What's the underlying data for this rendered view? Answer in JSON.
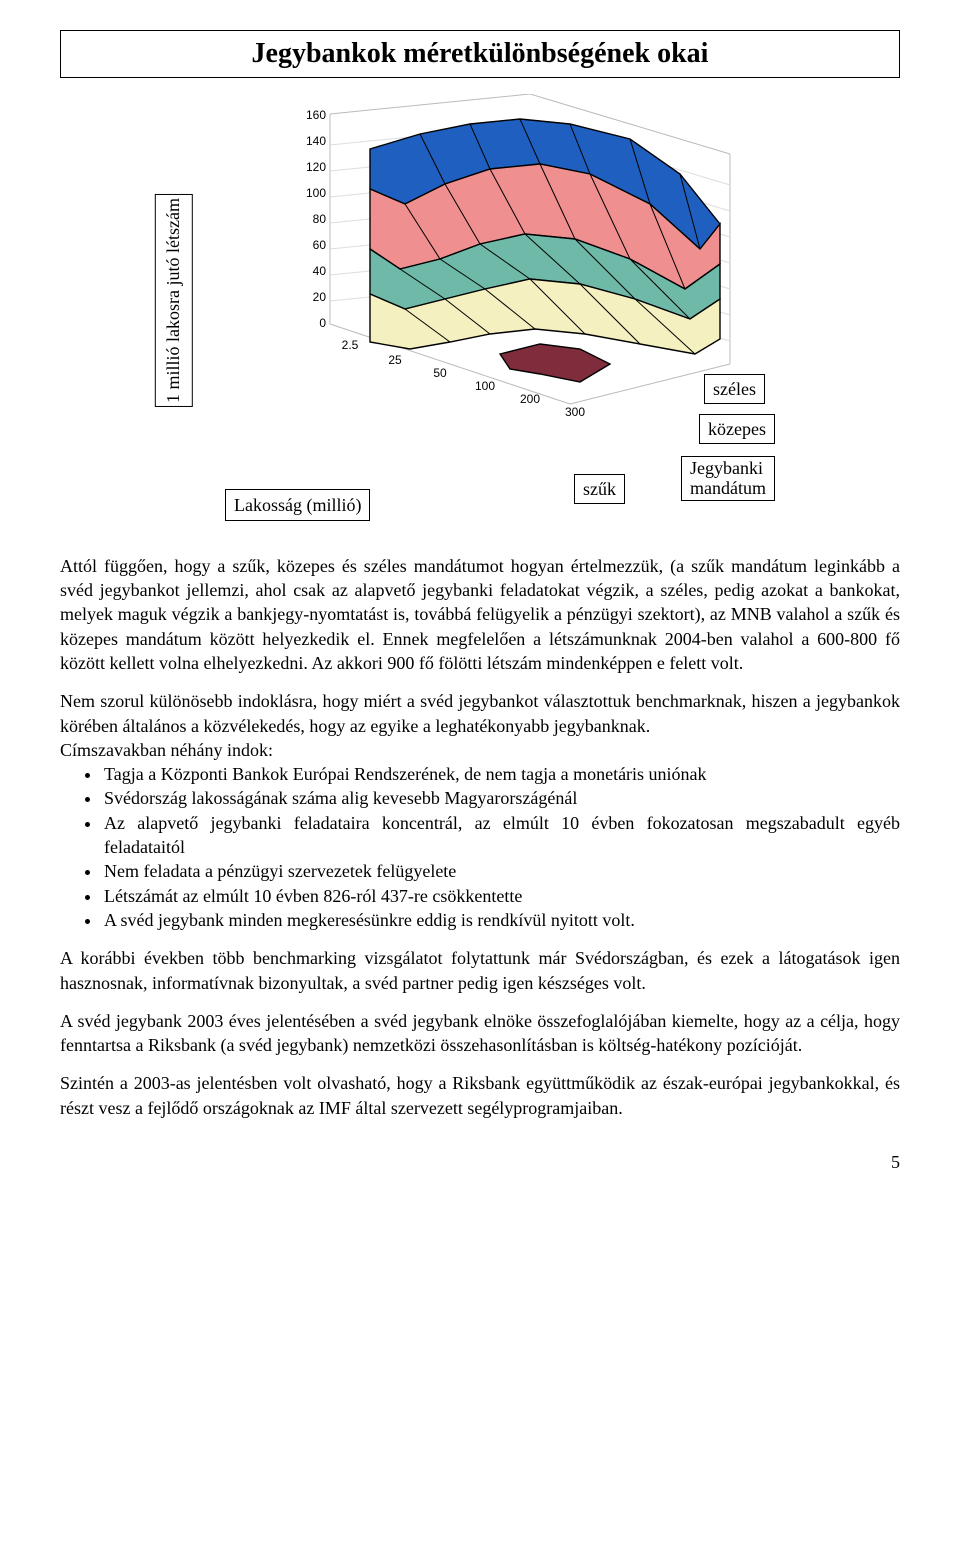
{
  "title": "Jegybankok méretkülönbségének okai",
  "chart": {
    "type": "3d-surface",
    "y_label": "1 millió lakosra jutó létszám",
    "x_label": "Lakosság (millió)",
    "z_ticks": [
      0,
      20,
      40,
      60,
      80,
      100,
      120,
      140,
      160
    ],
    "x_ticks": [
      2.5,
      25,
      50,
      100,
      200,
      300
    ],
    "series_labels": {
      "wide": "széles",
      "mid": "közepes",
      "narrow": "szűk"
    },
    "mandate_label": "Jegybanki\nmandátum",
    "colors": {
      "blue": "#1f5fbf",
      "salmon": "#ef8f8f",
      "teal": "#6fb9a9",
      "cream": "#f4f0c0",
      "maroon": "#7f2d3d",
      "grid": "#000000",
      "bg": "#ffffff"
    }
  },
  "paragraphs": {
    "p1": "Attól függően, hogy a szűk, közepes és széles mandátumot hogyan értelmezzük, (a szűk mandátum leginkább a svéd jegybankot jellemzi, ahol csak az alapvető jegybanki feladatokat végzik, a széles, pedig azokat a bankokat, melyek maguk végzik a bankjegy-nyomtatást is, továbbá felügyelik a pénzügyi szektort), az MNB valahol a szűk és közepes mandátum között helyezkedik el. Ennek megfelelően a létszámunknak 2004-ben valahol a 600-800 fő között kellett volna elhelyezkedni. Az akkori 900 fő fölötti létszám mindenképpen e felett volt.",
    "p2": "Nem szorul különösebb indoklásra, hogy miért a svéd jegybankot választottuk benchmarknak, hiszen a jegybankok körében általános a közvélekedés, hogy az egyike a leghatékonyabb jegybanknak.",
    "p2b": "Címszavakban néhány indok:",
    "bullets": [
      "Tagja a Központi Bankok Európai Rendszerének, de nem tagja a monetáris uniónak",
      "Svédország lakosságának száma alig kevesebb Magyarországénál",
      "Az alapvető jegybanki feladataira koncentrál, az elmúlt 10 évben fokozatosan megszabadult egyéb feladataitól",
      "Nem feladata a pénzügyi szervezetek felügyelete",
      "Létszámát az elmúlt 10 évben 826-ról 437-re csökkentette",
      "A svéd jegybank minden megkeresésünkre eddig is rendkívül nyitott volt."
    ],
    "p3": "A korábbi években több benchmarking vizsgálatot folytattunk már Svédországban, és ezek a látogatások igen hasznosnak, informatívnak bizonyultak, a svéd partner pedig igen készséges volt.",
    "p4": "A svéd jegybank 2003 éves jelentésében a svéd jegybank elnöke összefoglalójában kiemelte, hogy az a célja, hogy fenntartsa a Riksbank (a svéd jegybank) nemzetközi összehasonlításban is költség-hatékony pozícióját.",
    "p5": "Szintén a 2003-as jelentésben volt olvasható, hogy a Riksbank együttműködik az észak-európai jegybankokkal, és részt vesz a fejlődő országoknak az IMF által szervezett segélyprogramjaiban."
  },
  "page_number": "5"
}
